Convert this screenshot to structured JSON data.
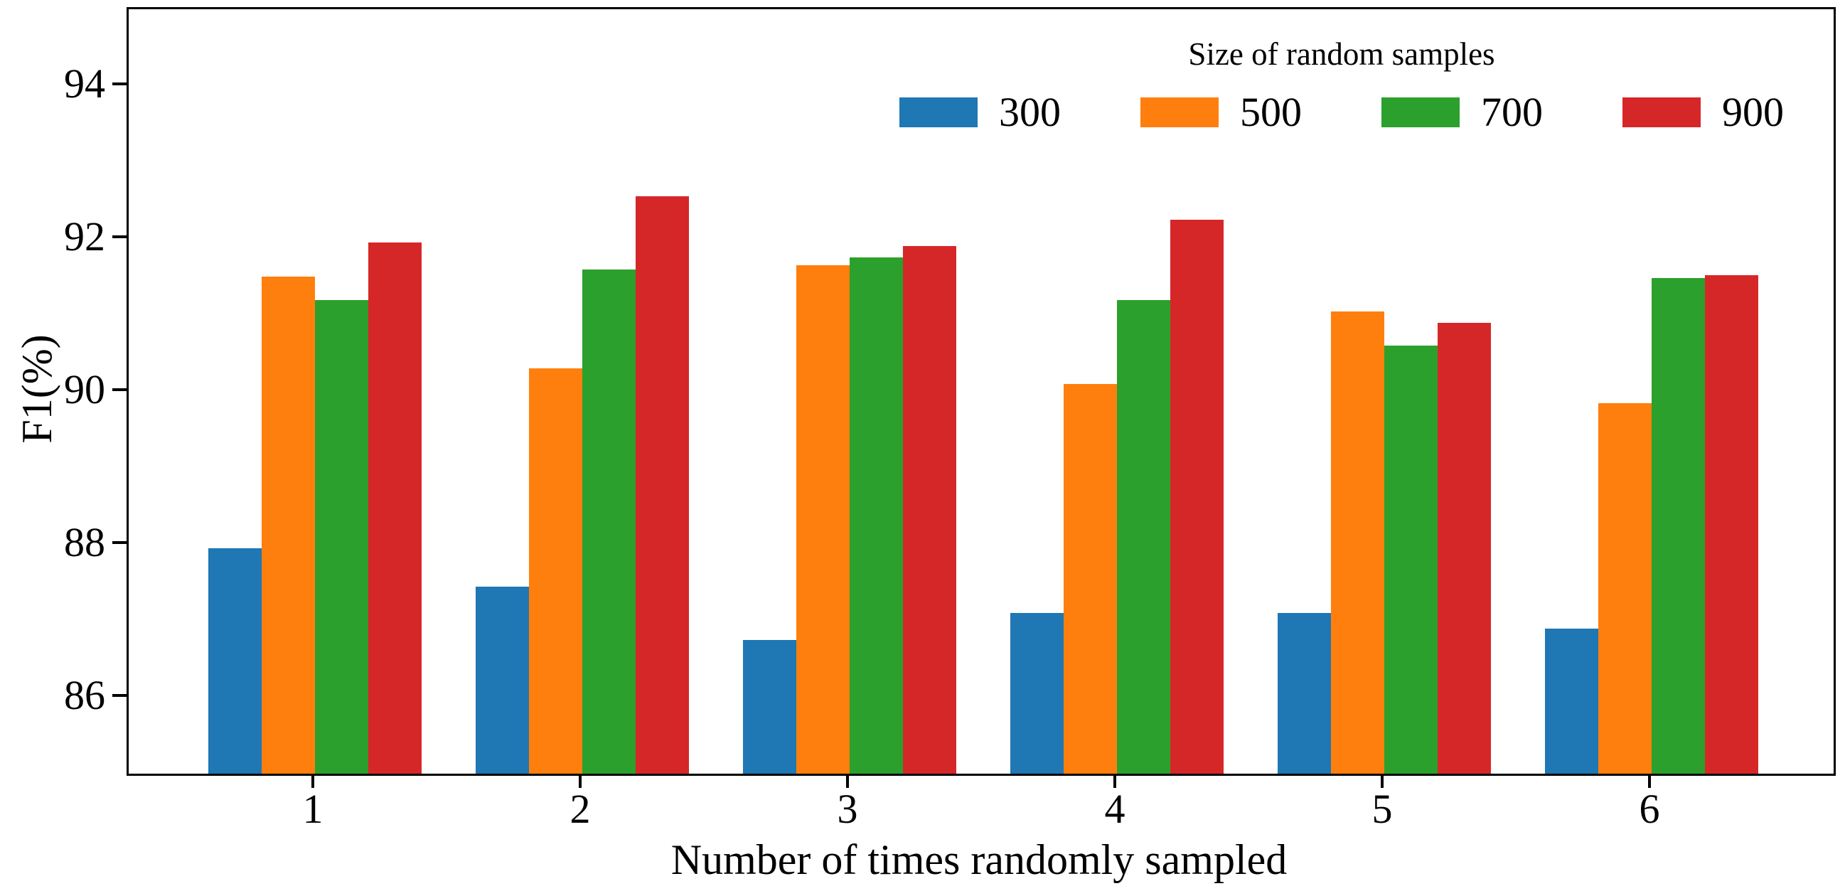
{
  "chart_data": {
    "type": "bar",
    "title": "",
    "xlabel": "Number of times randomly sampled",
    "ylabel": "F1(%)",
    "categories": [
      "1",
      "2",
      "3",
      "4",
      "5",
      "6"
    ],
    "series": [
      {
        "name": "300",
        "color": "#1f77b4",
        "values": [
          87.95,
          87.45,
          86.75,
          87.1,
          87.1,
          86.9
        ]
      },
      {
        "name": "500",
        "color": "#ff7f0e",
        "values": [
          91.5,
          90.3,
          91.65,
          90.1,
          91.05,
          89.85
        ]
      },
      {
        "name": "700",
        "color": "#2ca02c",
        "values": [
          91.2,
          91.6,
          91.75,
          91.2,
          90.6,
          91.48
        ]
      },
      {
        "name": "900",
        "color": "#d62728",
        "values": [
          91.95,
          92.55,
          91.9,
          92.25,
          90.9,
          91.52
        ]
      }
    ],
    "legend": {
      "title": "Size of random samples",
      "labels": [
        "300",
        "500",
        "700",
        "900"
      ],
      "position": "upper-right-inside",
      "frame": false
    },
    "ylim": [
      85,
      95
    ],
    "yticks": [
      86,
      88,
      90,
      92,
      94
    ],
    "grid": false,
    "background_color": "#ffffff",
    "spine_color": "#000000"
  }
}
